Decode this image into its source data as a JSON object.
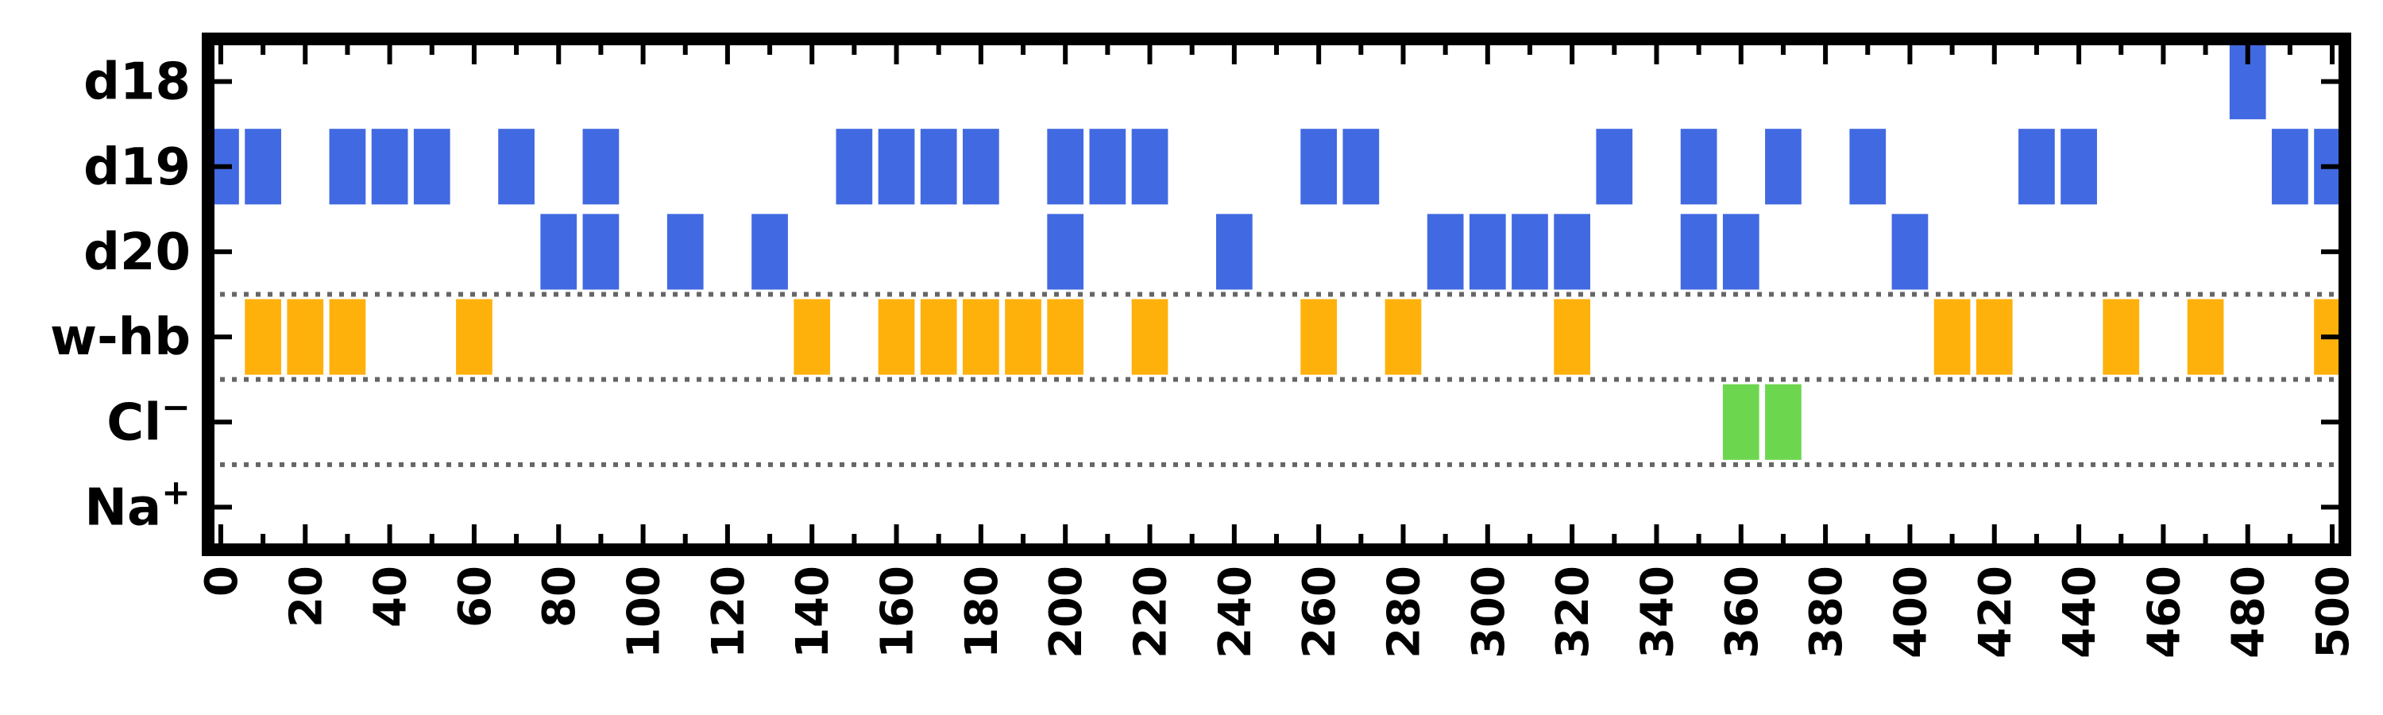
{
  "chart_data": {
    "type": "event-raster",
    "xlim": [
      -3,
      503
    ],
    "x_ticks": [
      0,
      20,
      40,
      60,
      80,
      100,
      120,
      140,
      160,
      180,
      200,
      220,
      240,
      260,
      280,
      300,
      320,
      340,
      360,
      380,
      400,
      420,
      440,
      460,
      480,
      500
    ],
    "x_minor_step": 10,
    "rows": [
      {
        "key": "d18",
        "label": "d18",
        "sup": "",
        "color": "#4169e1",
        "events": [
          480
        ]
      },
      {
        "key": "d19",
        "label": "d19",
        "sup": "",
        "color": "#4169e1",
        "events": [
          0,
          10,
          30,
          40,
          50,
          70,
          90,
          150,
          160,
          170,
          180,
          200,
          210,
          220,
          260,
          270,
          330,
          350,
          370,
          390,
          430,
          440,
          490,
          500
        ]
      },
      {
        "key": "d20",
        "label": "d20",
        "sup": "",
        "color": "#4169e1",
        "events": [
          80,
          90,
          110,
          130,
          200,
          240,
          290,
          300,
          310,
          320,
          350,
          360,
          400
        ]
      },
      {
        "key": "w-hb",
        "label": "w-hb",
        "sup": "",
        "color": "#ffb10b",
        "events": [
          10,
          20,
          30,
          60,
          140,
          160,
          170,
          180,
          190,
          200,
          220,
          260,
          280,
          320,
          410,
          420,
          450,
          470,
          500
        ]
      },
      {
        "key": "Cl",
        "label": "Cl",
        "sup": "−",
        "color": "#6dd64f",
        "events": [
          360,
          370
        ]
      },
      {
        "key": "Na",
        "label": "Na",
        "sup": "+",
        "color": "#4169e1",
        "events": []
      }
    ],
    "event_width": 8.6,
    "separators_after_rows": [
      2,
      3,
      4
    ],
    "separator_style": "dotted grey"
  }
}
